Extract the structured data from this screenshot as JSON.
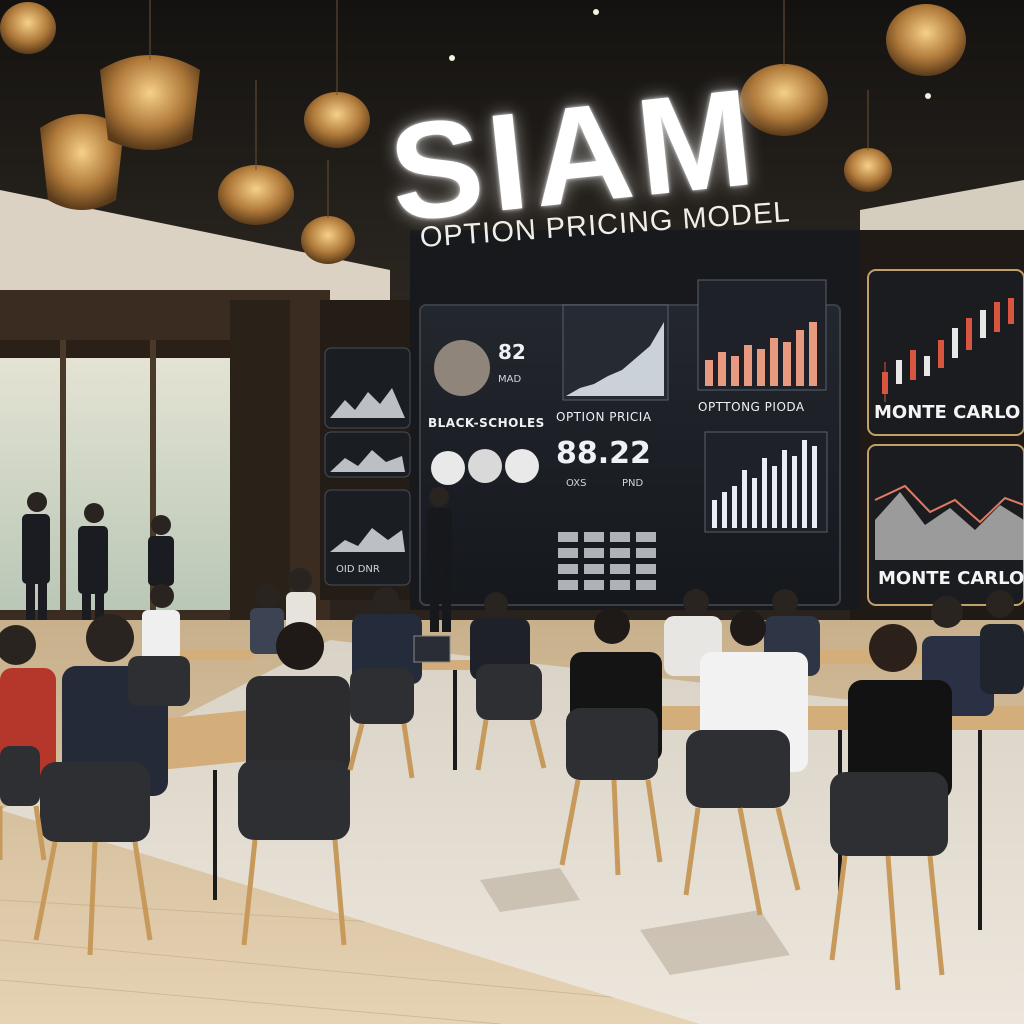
{
  "sign": {
    "brand": "SIAM",
    "subtitle": "OPTION PRICING MODEL"
  },
  "screen": {
    "stat_top": "82",
    "stat_top_sub": "MAD",
    "label_left": "BLACK-SCHOLES",
    "label_center": "OPTION PRICIA",
    "label_right": "OPTTONG PIODA",
    "stat_big": "88.22",
    "stat_big_sub_a": "OXS",
    "stat_big_sub_b": "PND"
  },
  "side_panels": {
    "top_label": "MONTE CARLO",
    "bottom_label": "MONTE CARLO",
    "small_screen_caption": "OID DNR"
  },
  "colors": {
    "screen_bg": "#1b1e24",
    "chart_bar": "#e8eef4",
    "chart_bar_warm": "#e89a80",
    "candle_red": "#d8553f",
    "wood_floor": "#d9c3a0",
    "chair_dark": "#2e2f33",
    "chair_leg": "#c79a5c"
  }
}
